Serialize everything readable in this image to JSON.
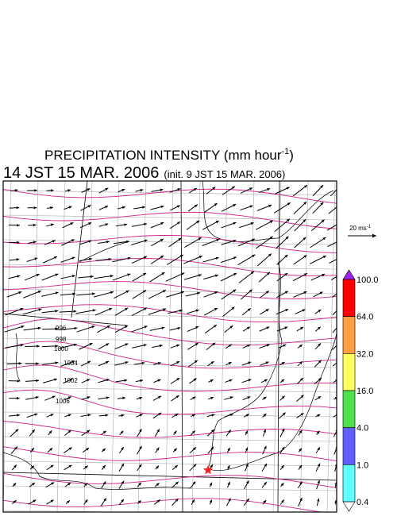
{
  "header": {
    "title": "PRECIPITATION INTENSITY (mm hour",
    "title_sup": "-1",
    "title_end": ")",
    "time": "14 JST 15 MAR. 2006",
    "init": "(init. 9 JST 15 MAR. 2006)"
  },
  "wind_scale": {
    "label": "20 ms",
    "sup": "-1"
  },
  "colorbar": {
    "labels": [
      "100.0",
      "64.0",
      "32.0",
      "16.0",
      "4.0",
      "1.0",
      "0.4"
    ],
    "colors": [
      "#a020f0",
      "#ff0000",
      "#ffa040",
      "#ffff60",
      "#50e050",
      "#6060ff",
      "#60ffff",
      "#ffffff"
    ]
  },
  "isobars": {
    "labels": [
      "996",
      "998",
      "1000",
      "1004",
      "1002",
      "1006"
    ]
  }
}
